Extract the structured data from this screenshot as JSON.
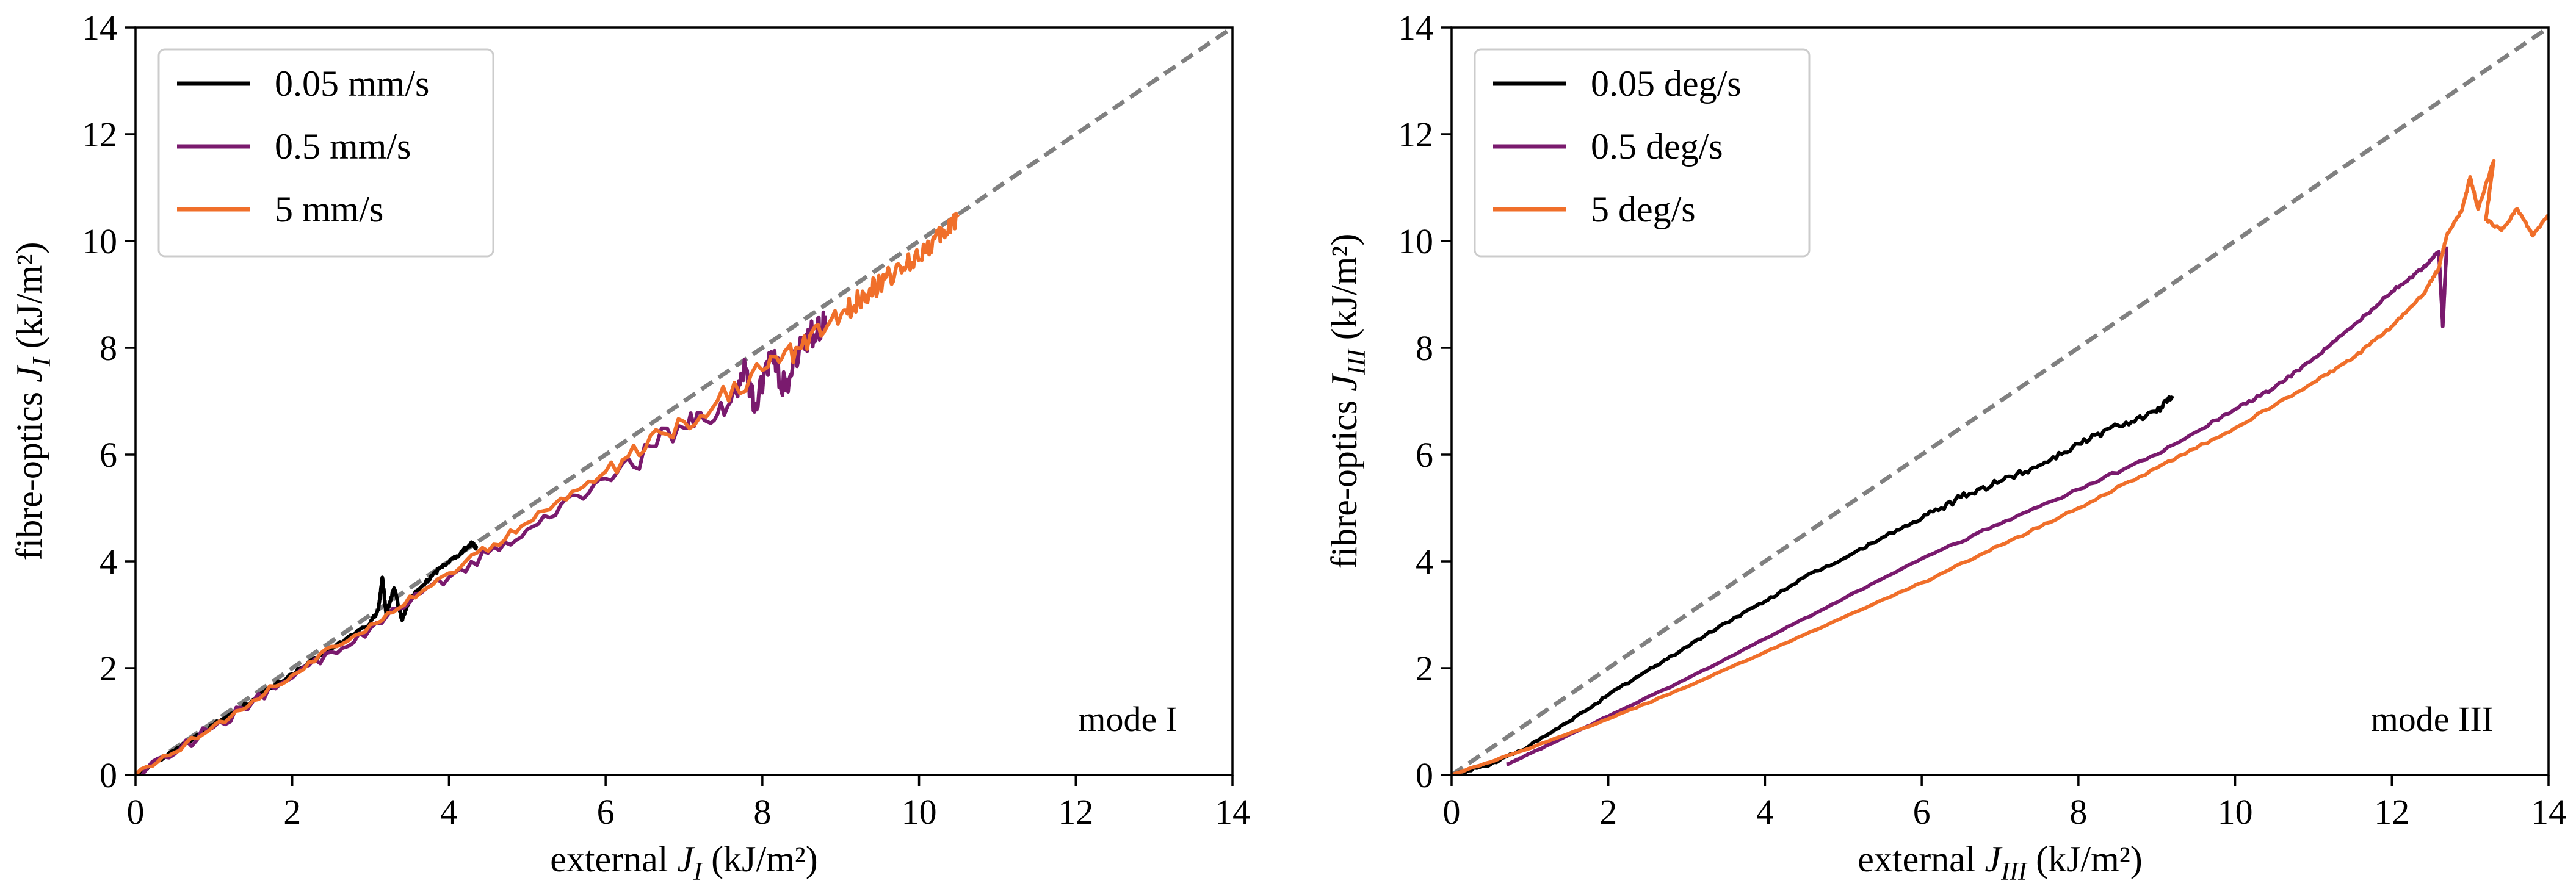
{
  "chart_data": [
    {
      "type": "line",
      "panel": "left",
      "xlabel": {
        "prefix": "external ",
        "var": "J",
        "sub": "I",
        "suffix": " (kJ/m²)"
      },
      "ylabel": {
        "prefix": "fibre-optics ",
        "var": "J",
        "sub": "I",
        "suffix": " (kJ/m²)"
      },
      "xlim": [
        0,
        14
      ],
      "ylim": [
        0,
        14
      ],
      "xticks": [
        0,
        2,
        4,
        6,
        8,
        10,
        12,
        14
      ],
      "yticks": [
        0,
        2,
        4,
        6,
        8,
        10,
        12,
        14
      ],
      "tick_labels": [
        "0",
        "2",
        "4",
        "6",
        "8",
        "10",
        "12",
        "14"
      ],
      "grid": false,
      "legend_position": "upper-left",
      "annotation": "mode I",
      "reference_line": {
        "style": "dashed",
        "color": "#808080",
        "points": [
          [
            0,
            0
          ],
          [
            14,
            14
          ]
        ]
      },
      "series": [
        {
          "name": "0.05 mm/s",
          "color": "#000000",
          "points": [
            [
              0,
              0
            ],
            [
              0.5,
              0.46
            ],
            [
              1.0,
              0.94
            ],
            [
              1.5,
              1.41
            ],
            [
              2.0,
              1.89
            ],
            [
              2.5,
              2.36
            ],
            [
              3.0,
              2.85
            ],
            [
              3.1,
              3.1
            ],
            [
              3.15,
              3.7
            ],
            [
              3.2,
              3.0
            ],
            [
              3.3,
              3.5
            ],
            [
              3.4,
              2.9
            ],
            [
              3.5,
              3.3
            ],
            [
              3.7,
              3.6
            ],
            [
              3.9,
              3.9
            ],
            [
              4.1,
              4.1
            ],
            [
              4.3,
              4.35
            ],
            [
              4.35,
              4.25
            ]
          ],
          "noise": 0.18
        },
        {
          "name": "0.5 mm/s",
          "color": "#7a1a6e",
          "points": [
            [
              0,
              0
            ],
            [
              1.0,
              0.9
            ],
            [
              2.0,
              1.82
            ],
            [
              3.0,
              2.75
            ],
            [
              4.0,
              3.7
            ],
            [
              5.0,
              4.6
            ],
            [
              6.0,
              5.55
            ],
            [
              7.0,
              6.5
            ],
            [
              7.6,
              7.0
            ],
            [
              7.8,
              7.6
            ],
            [
              7.9,
              6.8
            ],
            [
              8.1,
              7.9
            ],
            [
              8.3,
              7.2
            ],
            [
              8.5,
              8.1
            ],
            [
              8.7,
              8.3
            ],
            [
              8.8,
              8.6
            ]
          ],
          "noise": 0.55
        },
        {
          "name": "5 mm/s",
          "color": "#f06f2a",
          "points": [
            [
              0,
              0
            ],
            [
              1.0,
              0.93
            ],
            [
              2.0,
              1.87
            ],
            [
              3.0,
              2.82
            ],
            [
              4.0,
              3.78
            ],
            [
              5.0,
              4.72
            ],
            [
              6.0,
              5.68
            ],
            [
              7.0,
              6.62
            ],
            [
              8.0,
              7.58
            ],
            [
              8.5,
              8.0
            ],
            [
              9.0,
              8.6
            ],
            [
              9.3,
              9.0
            ],
            [
              9.5,
              9.2
            ],
            [
              9.8,
              9.5
            ],
            [
              10.1,
              9.9
            ],
            [
              10.3,
              10.1
            ],
            [
              10.5,
              10.5
            ]
          ],
          "noise": 0.4
        }
      ]
    },
    {
      "type": "line",
      "panel": "right",
      "xlabel": {
        "prefix": "external ",
        "var": "J",
        "sub": "III",
        "suffix": " (kJ/m²)"
      },
      "ylabel": {
        "prefix": "fibre-optics ",
        "var": "J",
        "sub": "III",
        "suffix": " (kJ/m²)"
      },
      "xlim": [
        0,
        14
      ],
      "ylim": [
        0,
        14
      ],
      "xticks": [
        0,
        2,
        4,
        6,
        8,
        10,
        12,
        14
      ],
      "yticks": [
        0,
        2,
        4,
        6,
        8,
        10,
        12,
        14
      ],
      "tick_labels": [
        "0",
        "2",
        "4",
        "6",
        "8",
        "10",
        "12",
        "14"
      ],
      "grid": false,
      "legend_position": "upper-left",
      "annotation": "mode III",
      "reference_line": {
        "style": "dashed",
        "color": "#808080",
        "points": [
          [
            0,
            0
          ],
          [
            14,
            14
          ]
        ]
      },
      "series": [
        {
          "name": "0.05 deg/s",
          "color": "#000000",
          "points": [
            [
              0,
              0
            ],
            [
              0.5,
              0.2
            ],
            [
              1.0,
              0.55
            ],
            [
              1.5,
              1.0
            ],
            [
              2.0,
              1.5
            ],
            [
              2.5,
              1.95
            ],
            [
              3.0,
              2.4
            ],
            [
              3.5,
              2.85
            ],
            [
              4.0,
              3.25
            ],
            [
              4.5,
              3.7
            ],
            [
              5.0,
              4.05
            ],
            [
              5.5,
              4.45
            ],
            [
              6.0,
              4.8
            ],
            [
              6.5,
              5.2
            ],
            [
              7.0,
              5.5
            ],
            [
              7.5,
              5.8
            ],
            [
              8.0,
              6.2
            ],
            [
              8.5,
              6.55
            ],
            [
              9.0,
              6.8
            ],
            [
              9.2,
              7.1
            ]
          ],
          "noise": 0.12
        },
        {
          "name": "0.5 deg/s",
          "color": "#7a1a6e",
          "points": [
            [
              0.7,
              0.2
            ],
            [
              1.0,
              0.4
            ],
            [
              2.0,
              1.1
            ],
            [
              3.0,
              1.8
            ],
            [
              4.0,
              2.55
            ],
            [
              5.0,
              3.3
            ],
            [
              6.0,
              4.05
            ],
            [
              7.0,
              4.7
            ],
            [
              8.0,
              5.35
            ],
            [
              9.0,
              6.0
            ],
            [
              10.0,
              6.85
            ],
            [
              10.5,
              7.25
            ],
            [
              11.0,
              7.8
            ],
            [
              11.5,
              8.4
            ],
            [
              12.0,
              9.05
            ],
            [
              12.4,
              9.5
            ],
            [
              12.6,
              9.8
            ],
            [
              12.65,
              8.4
            ],
            [
              12.7,
              9.9
            ]
          ],
          "noise": 0.06
        },
        {
          "name": "5 deg/s",
          "color": "#f06f2a",
          "points": [
            [
              0,
              0
            ],
            [
              1.0,
              0.5
            ],
            [
              2.0,
              1.05
            ],
            [
              3.0,
              1.65
            ],
            [
              4.0,
              2.3
            ],
            [
              5.0,
              2.95
            ],
            [
              6.0,
              3.6
            ],
            [
              7.0,
              4.3
            ],
            [
              8.0,
              5.0
            ],
            [
              9.0,
              5.75
            ],
            [
              10.0,
              6.5
            ],
            [
              11.0,
              7.35
            ],
            [
              11.5,
              7.8
            ],
            [
              12.0,
              8.4
            ],
            [
              12.4,
              9.0
            ],
            [
              12.6,
              9.5
            ],
            [
              12.7,
              10.1
            ],
            [
              12.9,
              10.6
            ],
            [
              13.0,
              11.2
            ],
            [
              13.1,
              10.6
            ],
            [
              13.3,
              11.5
            ],
            [
              13.2,
              10.4
            ],
            [
              13.4,
              10.2
            ],
            [
              13.6,
              10.6
            ],
            [
              13.8,
              10.1
            ],
            [
              14.0,
              10.5
            ]
          ],
          "noise": 0.05
        }
      ]
    }
  ]
}
